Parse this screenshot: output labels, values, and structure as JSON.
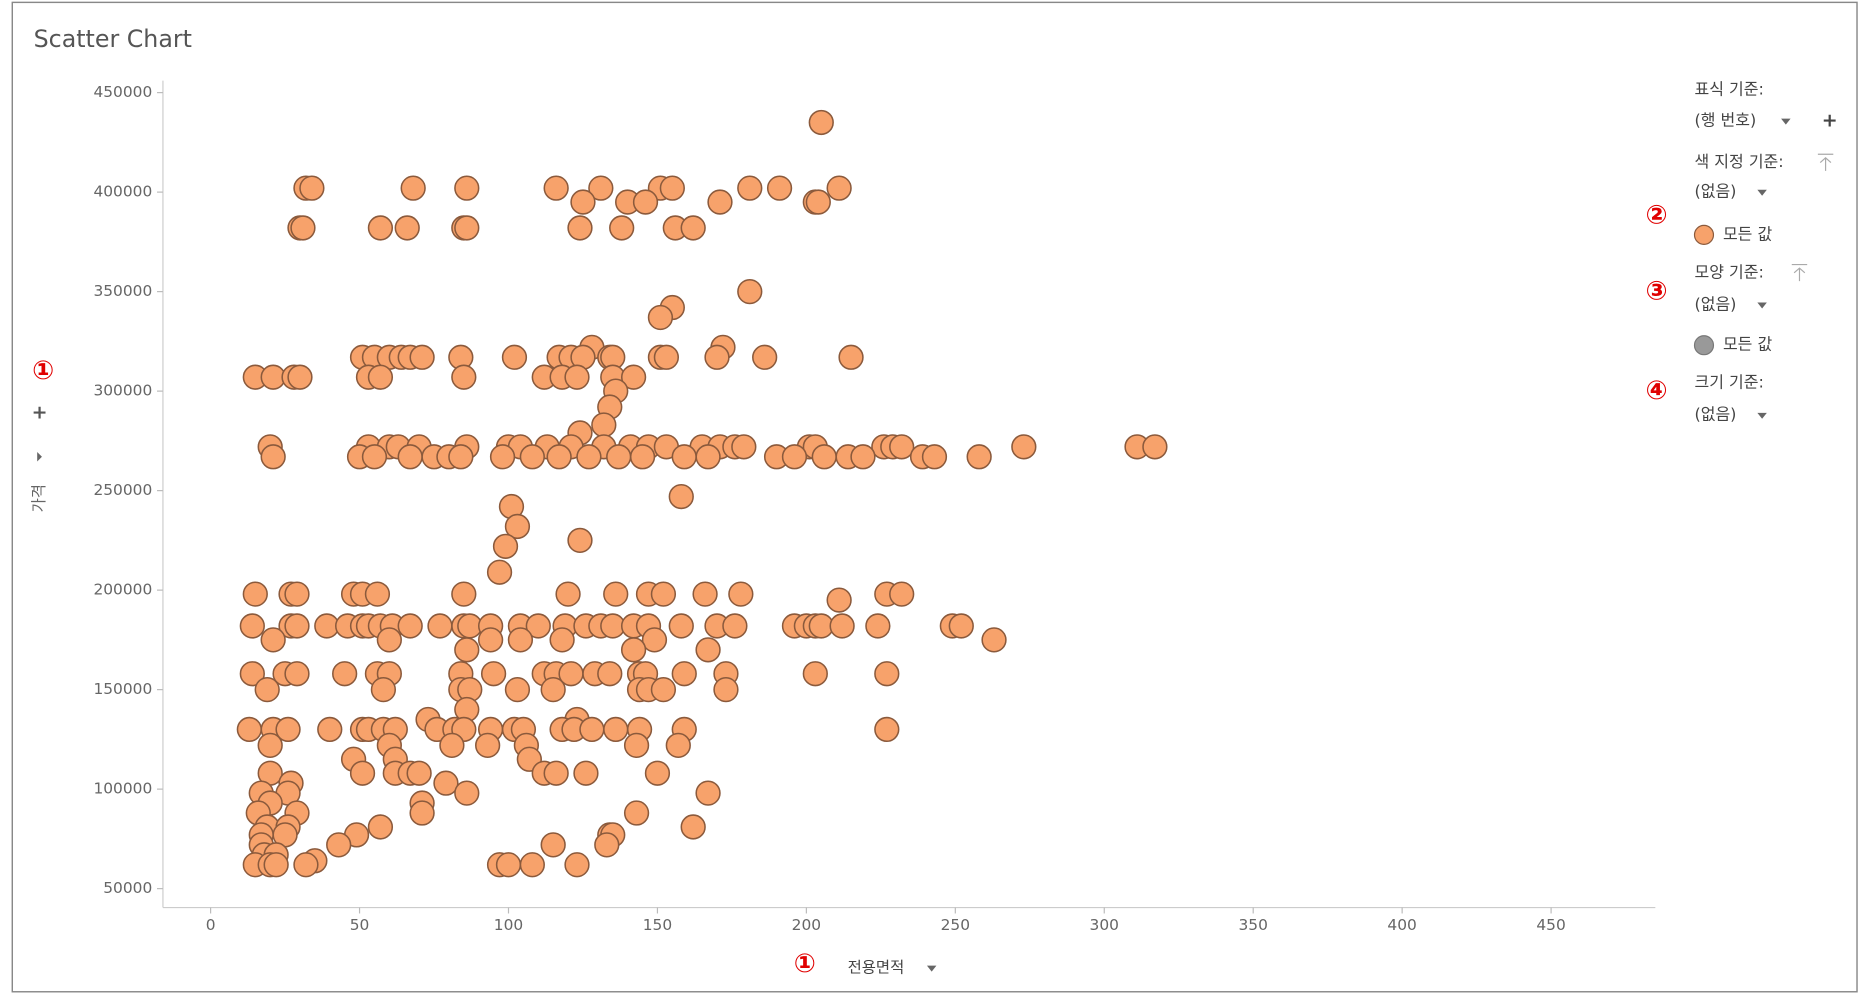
{
  "chart_data": {
    "type": "scatter",
    "title": "Scatter Chart",
    "x_label": "전용면적",
    "y_label": "가격",
    "color": "#f7a26b",
    "stroke": "#8b5a3c",
    "xlim": [
      -16,
      485
    ],
    "ylim": [
      40500,
      456000
    ],
    "xticks": [
      0,
      50,
      100,
      150,
      200,
      250,
      300,
      350,
      400,
      450
    ],
    "yticks": [
      50000,
      100000,
      150000,
      200000,
      250000,
      300000,
      350000,
      400000,
      450000
    ],
    "x": [
      205,
      32,
      34,
      68,
      86,
      116,
      131,
      151,
      155,
      181,
      191,
      211,
      125,
      140,
      146,
      171,
      203,
      204,
      30,
      31,
      57,
      66,
      85,
      86,
      124,
      138,
      156,
      162,
      181,
      155,
      151,
      128,
      172,
      51,
      55,
      60,
      64,
      67,
      71,
      84,
      102,
      117,
      121,
      125,
      134,
      135,
      151,
      153,
      170,
      186,
      215,
      15,
      21,
      28,
      30,
      53,
      57,
      85,
      112,
      118,
      123,
      135,
      142,
      136,
      134,
      132,
      124,
      20,
      53,
      60,
      63,
      70,
      86,
      100,
      104,
      113,
      121,
      132,
      141,
      147,
      153,
      165,
      171,
      176,
      179,
      201,
      203,
      226,
      229,
      232,
      273,
      311,
      317,
      21,
      50,
      55,
      67,
      75,
      80,
      84,
      98,
      108,
      117,
      127,
      137,
      145,
      159,
      167,
      190,
      196,
      206,
      214,
      219,
      239,
      243,
      258,
      158,
      101,
      103,
      124,
      99,
      97,
      15,
      27,
      29,
      48,
      51,
      56,
      85,
      120,
      136,
      147,
      152,
      166,
      178,
      227,
      232,
      211,
      14,
      27,
      29,
      39,
      46,
      51,
      53,
      57,
      61,
      67,
      77,
      85,
      87,
      94,
      104,
      110,
      119,
      126,
      131,
      135,
      142,
      147,
      158,
      170,
      176,
      196,
      200,
      203,
      205,
      212,
      224,
      249,
      252,
      21,
      60,
      94,
      104,
      118,
      149,
      263,
      86,
      142,
      167,
      14,
      25,
      29,
      45,
      56,
      60,
      84,
      95,
      112,
      116,
      121,
      129,
      134,
      144,
      146,
      159,
      173,
      203,
      227,
      19,
      58,
      84,
      87,
      103,
      115,
      144,
      147,
      152,
      173,
      86,
      73,
      123,
      13,
      21,
      26,
      40,
      51,
      53,
      58,
      62,
      76,
      82,
      85,
      94,
      102,
      105,
      118,
      122,
      128,
      136,
      144,
      159,
      227,
      20,
      60,
      81,
      93,
      106,
      143,
      157,
      48,
      62,
      107,
      20,
      51,
      62,
      67,
      70,
      112,
      116,
      126,
      150,
      27,
      79,
      17,
      26,
      86,
      167,
      20,
      71,
      16,
      29,
      71,
      143,
      19,
      26,
      57,
      162,
      17,
      25,
      49,
      134,
      135,
      17,
      43,
      115,
      133,
      18,
      22,
      35,
      15,
      20,
      22,
      32,
      97,
      100,
      108,
      123
    ],
    "y": [
      435000,
      402000,
      402000,
      402000,
      402000,
      402000,
      402000,
      402000,
      402000,
      402000,
      402000,
      402000,
      395000,
      395000,
      395000,
      395000,
      395000,
      395000,
      382000,
      382000,
      382000,
      382000,
      382000,
      382000,
      382000,
      382000,
      382000,
      382000,
      350000,
      342000,
      337000,
      322000,
      322000,
      317000,
      317000,
      317000,
      317000,
      317000,
      317000,
      317000,
      317000,
      317000,
      317000,
      317000,
      317000,
      317000,
      317000,
      317000,
      317000,
      317000,
      317000,
      307000,
      307000,
      307000,
      307000,
      307000,
      307000,
      307000,
      307000,
      307000,
      307000,
      307000,
      307000,
      300000,
      292000,
      283000,
      279000,
      272000,
      272000,
      272000,
      272000,
      272000,
      272000,
      272000,
      272000,
      272000,
      272000,
      272000,
      272000,
      272000,
      272000,
      272000,
      272000,
      272000,
      272000,
      272000,
      272000,
      272000,
      272000,
      272000,
      272000,
      272000,
      272000,
      267000,
      267000,
      267000,
      267000,
      267000,
      267000,
      267000,
      267000,
      267000,
      267000,
      267000,
      267000,
      267000,
      267000,
      267000,
      267000,
      267000,
      267000,
      267000,
      267000,
      267000,
      267000,
      267000,
      247000,
      242000,
      232000,
      225000,
      222000,
      209000,
      198000,
      198000,
      198000,
      198000,
      198000,
      198000,
      198000,
      198000,
      198000,
      198000,
      198000,
      198000,
      198000,
      198000,
      198000,
      195000,
      182000,
      182000,
      182000,
      182000,
      182000,
      182000,
      182000,
      182000,
      182000,
      182000,
      182000,
      182000,
      182000,
      182000,
      182000,
      182000,
      182000,
      182000,
      182000,
      182000,
      182000,
      182000,
      182000,
      182000,
      182000,
      182000,
      182000,
      182000,
      182000,
      182000,
      182000,
      182000,
      182000,
      175000,
      175000,
      175000,
      175000,
      175000,
      175000,
      175000,
      170000,
      170000,
      170000,
      158000,
      158000,
      158000,
      158000,
      158000,
      158000,
      158000,
      158000,
      158000,
      158000,
      158000,
      158000,
      158000,
      158000,
      158000,
      158000,
      158000,
      158000,
      158000,
      150000,
      150000,
      150000,
      150000,
      150000,
      150000,
      150000,
      150000,
      150000,
      150000,
      140000,
      135000,
      135000,
      130000,
      130000,
      130000,
      130000,
      130000,
      130000,
      130000,
      130000,
      130000,
      130000,
      130000,
      130000,
      130000,
      130000,
      130000,
      130000,
      130000,
      130000,
      130000,
      130000,
      130000,
      122000,
      122000,
      122000,
      122000,
      122000,
      122000,
      122000,
      115000,
      115000,
      115000,
      108000,
      108000,
      108000,
      108000,
      108000,
      108000,
      108000,
      108000,
      108000,
      103000,
      103000,
      98000,
      98000,
      98000,
      98000,
      93000,
      93000,
      88000,
      88000,
      88000,
      88000,
      81000,
      81000,
      81000,
      81000,
      77000,
      77000,
      77000,
      77000,
      77000,
      72000,
      72000,
      72000,
      72000,
      67000,
      67000,
      64000,
      62000,
      62000,
      62000,
      62000,
      62000,
      62000,
      62000,
      62000
    ],
    "annotations": [
      "①",
      "①",
      "②",
      "③",
      "④"
    ]
  },
  "panel": {
    "marker_by_label": "표식 기준:",
    "marker_by_value": "(행 번호)",
    "color_by_label": "색 지정 기준:",
    "color_by_value": "(없음)",
    "color_legend": "모든 값",
    "shape_by_label": "모양 기준:",
    "shape_by_value": "(없음)",
    "shape_legend": "모든 값",
    "size_by_label": "크기 기준:",
    "size_by_value": "(없음)"
  }
}
